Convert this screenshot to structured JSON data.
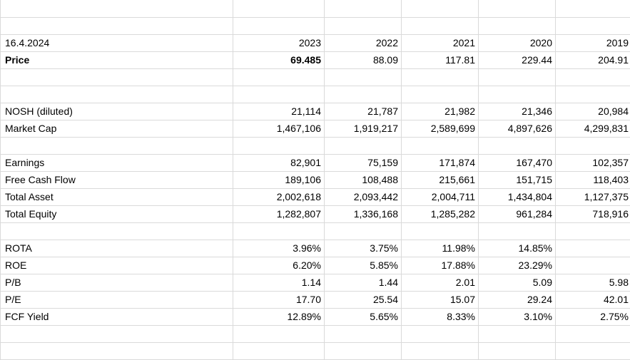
{
  "sheet": {
    "date": "16.4.2024",
    "years": [
      "2023",
      "2022",
      "2021",
      "2020",
      "2019"
    ],
    "rows": {
      "price": {
        "label": "Price",
        "values": [
          "69.485",
          "88.09",
          "117.81",
          "229.44",
          "204.91"
        ]
      },
      "nosh": {
        "label": "NOSH (diluted)",
        "values": [
          "21,114",
          "21,787",
          "21,982",
          "21,346",
          "20,984"
        ]
      },
      "market_cap": {
        "label": "Market Cap",
        "values": [
          "1,467,106",
          "1,919,217",
          "2,589,699",
          "4,897,626",
          "4,299,831"
        ]
      },
      "earnings": {
        "label": "Earnings",
        "values": [
          "82,901",
          "75,159",
          "171,874",
          "167,470",
          "102,357"
        ]
      },
      "fcf": {
        "label": "Free Cash Flow",
        "values": [
          "189,106",
          "108,488",
          "215,661",
          "151,715",
          "118,403"
        ]
      },
      "total_asset": {
        "label": "Total Asset",
        "values": [
          "2,002,618",
          "2,093,442",
          "2,004,711",
          "1,434,804",
          "1,127,375"
        ]
      },
      "total_equity": {
        "label": "Total Equity",
        "values": [
          "1,282,807",
          "1,336,168",
          "1,285,282",
          "961,284",
          "718,916"
        ]
      },
      "rota": {
        "label": "ROTA",
        "values": [
          "3.96%",
          "3.75%",
          "11.98%",
          "14.85%",
          ""
        ]
      },
      "roe": {
        "label": "ROE",
        "values": [
          "6.20%",
          "5.85%",
          "17.88%",
          "23.29%",
          ""
        ]
      },
      "pb": {
        "label": "P/B",
        "values": [
          "1.14",
          "1.44",
          "2.01",
          "5.09",
          "5.98"
        ]
      },
      "pe": {
        "label": "P/E",
        "values": [
          "17.70",
          "25.54",
          "15.07",
          "29.24",
          "42.01"
        ]
      },
      "fcf_yield": {
        "label": "FCF Yield",
        "values": [
          "12.89%",
          "5.65%",
          "8.33%",
          "3.10%",
          "2.75%"
        ]
      }
    }
  }
}
